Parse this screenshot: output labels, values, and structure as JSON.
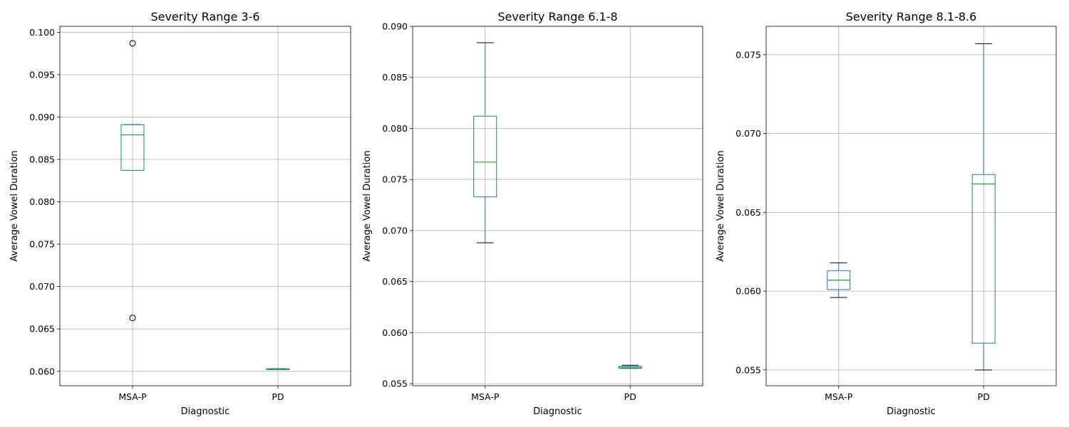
{
  "chart_data": [
    {
      "type": "box",
      "title": "Severity Range 3-6",
      "xlabel": "Diagnostic",
      "ylabel": "Average Vowel Duration",
      "ylim": [
        0.0583,
        0.1007
      ],
      "yticks": [
        0.06,
        0.065,
        0.07,
        0.075,
        0.08,
        0.085,
        0.09,
        0.095,
        0.1
      ],
      "ytick_labels": [
        "0.060",
        "0.065",
        "0.070",
        "0.075",
        "0.080",
        "0.085",
        "0.090",
        "0.095",
        "0.100"
      ],
      "categories": [
        "MSA-P",
        "PD"
      ],
      "boxes": [
        {
          "category": "MSA-P",
          "whislo": 0.0837,
          "q1": 0.0837,
          "med": 0.0879,
          "q3": 0.0891,
          "whishi": 0.0891,
          "fliers": [
            0.0987,
            0.0663
          ]
        },
        {
          "category": "PD",
          "whislo": 0.0602,
          "q1": 0.0602,
          "med": 0.0602,
          "q3": 0.0603,
          "whishi": 0.0603,
          "fliers": []
        }
      ],
      "grid": true
    },
    {
      "type": "box",
      "title": "Severity Range 6.1-8",
      "xlabel": "Diagnostic",
      "ylabel": "Average Vowel Duration",
      "ylim": [
        0.0548,
        0.09
      ],
      "yticks": [
        0.055,
        0.06,
        0.065,
        0.07,
        0.075,
        0.08,
        0.085,
        0.09
      ],
      "ytick_labels": [
        "0.055",
        "0.060",
        "0.065",
        "0.070",
        "0.075",
        "0.080",
        "0.085",
        "0.090"
      ],
      "categories": [
        "MSA-P",
        "PD"
      ],
      "boxes": [
        {
          "category": "MSA-P",
          "whislo": 0.0688,
          "q1": 0.0733,
          "med": 0.0767,
          "q3": 0.0812,
          "whishi": 0.0884,
          "fliers": []
        },
        {
          "category": "PD",
          "whislo": 0.0565,
          "q1": 0.0565,
          "med": 0.0566,
          "q3": 0.0567,
          "whishi": 0.0568,
          "fliers": []
        }
      ],
      "grid": true
    },
    {
      "type": "box",
      "title": "Severity Range 8.1-8.6",
      "xlabel": "Diagnostic",
      "ylabel": "Average Vowel Duration",
      "ylim": [
        0.054,
        0.0768
      ],
      "yticks": [
        0.055,
        0.06,
        0.065,
        0.07,
        0.075
      ],
      "ytick_labels": [
        "0.055",
        "0.060",
        "0.065",
        "0.070",
        "0.075"
      ],
      "categories": [
        "MSA-P",
        "PD"
      ],
      "boxes": [
        {
          "category": "MSA-P",
          "whislo": 0.0596,
          "q1": 0.0601,
          "med": 0.0607,
          "q3": 0.0613,
          "whishi": 0.0618,
          "fliers": []
        },
        {
          "category": "PD",
          "whislo": 0.055,
          "q1": 0.0567,
          "med": 0.0668,
          "q3": 0.0674,
          "whishi": 0.0757,
          "fliers": []
        }
      ],
      "grid": true
    }
  ]
}
